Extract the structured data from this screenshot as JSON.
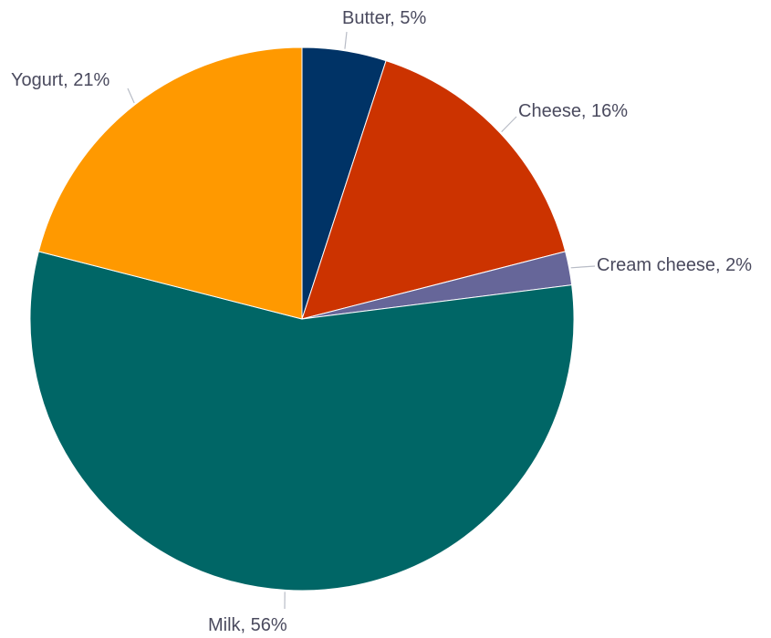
{
  "chart_data": {
    "type": "pie",
    "categories": [
      "Butter",
      "Cheese",
      "Cream cheese",
      "Milk",
      "Yogurt"
    ],
    "values": [
      5,
      16,
      2,
      56,
      21
    ],
    "labels": [
      "Butter, 5%",
      "Cheese, 16%",
      "Cream cheese, 2%",
      "Milk, 56%",
      "Yogurt, 21%"
    ],
    "colors": [
      "#003366",
      "#cc3300",
      "#666699",
      "#006666",
      "#ff9900"
    ],
    "start_angle": "12 o'clock",
    "direction": "clockwise",
    "legend": "none",
    "title": ""
  }
}
